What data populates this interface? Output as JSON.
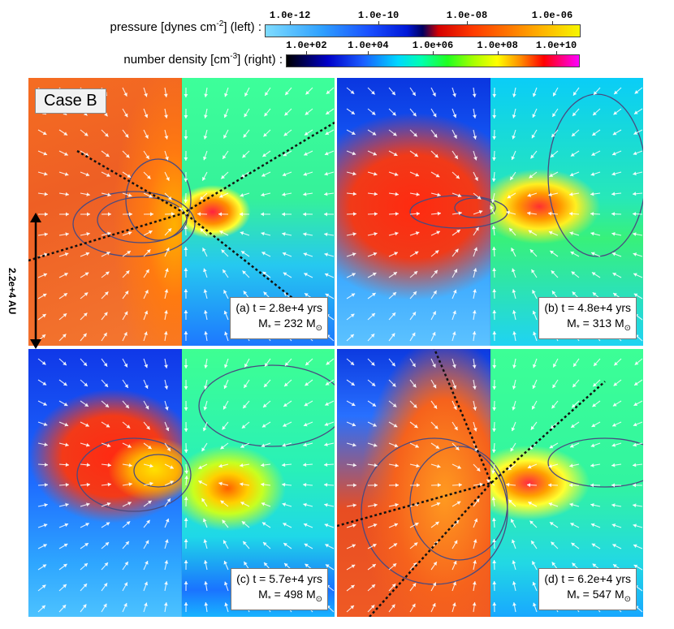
{
  "colorbars": {
    "pressure": {
      "label_main": "pressure [dynes cm",
      "label_exp": "-2",
      "label_tail": "] (left) :",
      "ticks": [
        "1.0e-12",
        "1.0e-10",
        "1.0e-08",
        "1.0e-06"
      ]
    },
    "density": {
      "label_main": "number density [cm",
      "label_exp": "-3",
      "label_tail": "] (right) :",
      "ticks": [
        "1.0e+02",
        "1.0e+04",
        "1.0e+06",
        "1.0e+08",
        "1.0e+10"
      ]
    }
  },
  "case_label": "Case B",
  "scale_label": "2.2e+4 AU",
  "panels": [
    {
      "time_label": "(a) t = 2.8e+4 yrs",
      "mass_prefix": "M",
      "mass_star": "*",
      "mass_value": " = 232 M",
      "mass_sym": "⊙"
    },
    {
      "time_label": "(b) t = 4.8e+4 yrs",
      "mass_prefix": "M",
      "mass_star": "*",
      "mass_value": " = 313 M",
      "mass_sym": "⊙"
    },
    {
      "time_label": "(c) t = 5.7e+4 yrs",
      "mass_prefix": "M",
      "mass_star": "*",
      "mass_value": " = 498 M",
      "mass_sym": "⊙"
    },
    {
      "time_label": "(d) t = 6.2e+4 yrs",
      "mass_prefix": "M",
      "mass_star": "*",
      "mass_value": " = 547 M",
      "mass_sym": "⊙"
    }
  ],
  "colors": {
    "arrow": "#ffffff",
    "contour": "#4a4a80",
    "dotted_line": "#111111"
  }
}
